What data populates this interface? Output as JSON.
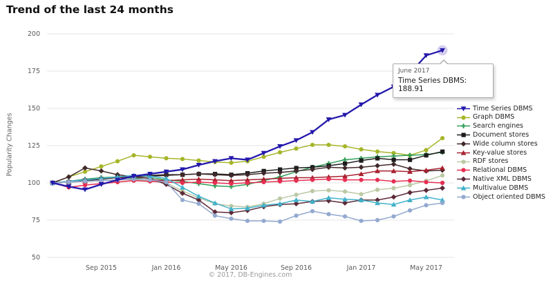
{
  "page": {
    "title": "Trend of the last 24 months",
    "footer": "© 2017, DB-Engines.com"
  },
  "tooltip": {
    "date": "June 2017",
    "text": "Time Series DBMS: 188.91"
  },
  "chart_data": {
    "type": "line",
    "title": "Trend of the last 24 months",
    "xlabel": "",
    "ylabel": "Popularity Changes",
    "ylim": [
      50,
      200
    ],
    "y_ticks": [
      200,
      175,
      150,
      125,
      100,
      75,
      50
    ],
    "grid": true,
    "legend_position": "right",
    "x": [
      "Jun 2015",
      "Jul 2015",
      "Aug 2015",
      "Sep 2015",
      "Oct 2015",
      "Nov 2015",
      "Dec 2015",
      "Jan 2016",
      "Feb 2016",
      "Mar 2016",
      "Apr 2016",
      "May 2016",
      "Jun 2016",
      "Jul 2016",
      "Aug 2016",
      "Sep 2016",
      "Oct 2016",
      "Nov 2016",
      "Dec 2016",
      "Jan 2017",
      "Feb 2017",
      "Mar 2017",
      "Apr 2017",
      "May 2017",
      "Jun 2017"
    ],
    "x_tick_indices": [
      3,
      7,
      11,
      15,
      19,
      23
    ],
    "x_tick_labels": [
      "Sep 2015",
      "Jan 2016",
      "May 2016",
      "Sep 2016",
      "Jan 2017",
      "May 2017"
    ],
    "highlight": {
      "series": "Time Series DBMS",
      "x": "Jun 2017",
      "value": 188.91,
      "halo_color": "#b7a7e6"
    },
    "series": [
      {
        "name": "Time Series DBMS",
        "color": "#2318ab",
        "marker": "triangle-down",
        "values": [
          100,
          97.5,
          95.5,
          99,
          102,
          104.5,
          106,
          107.5,
          109,
          112,
          114.5,
          116.5,
          115.5,
          120,
          124.5,
          128.5,
          134,
          142.5,
          145.5,
          152.5,
          159,
          164.5,
          173.5,
          185.5,
          188.91
        ]
      },
      {
        "name": "Graph DBMS",
        "color": "#a6b528",
        "marker": "circle",
        "values": [
          100,
          104,
          107.5,
          111,
          114.5,
          118.5,
          117.5,
          116.5,
          116,
          115,
          114,
          113.5,
          114.5,
          117.5,
          120.5,
          123,
          125.5,
          125.5,
          124.5,
          122.5,
          121,
          120,
          118.5,
          122,
          130
        ]
      },
      {
        "name": "Search engines",
        "color": "#2f9e57",
        "marker": "cross",
        "values": [
          100,
          101,
          102.5,
          103.5,
          104,
          103,
          103.5,
          102,
          101,
          99.5,
          98,
          97.5,
          99,
          101.5,
          104,
          107.5,
          110.5,
          113,
          115.5,
          116.5,
          117.5,
          118,
          118.5,
          119,
          120.5
        ]
      },
      {
        "name": "Document stores",
        "color": "#1c1c1c",
        "marker": "square",
        "values": [
          100,
          100.5,
          101.5,
          102.5,
          103.5,
          104.5,
          105,
          105.5,
          105.5,
          106,
          106,
          105.5,
          106.5,
          108,
          109,
          110,
          110.5,
          111.5,
          113,
          115,
          116.5,
          115.5,
          115.5,
          118.5,
          121
        ]
      },
      {
        "name": "Wide column stores",
        "color": "#40282a",
        "marker": "diamond",
        "values": [
          100,
          104,
          110,
          108,
          105.5,
          104,
          104.5,
          105,
          105.5,
          106,
          105.5,
          105,
          105.5,
          106.5,
          107,
          108,
          109,
          110.5,
          110,
          110.5,
          111.5,
          112.5,
          109.5,
          108,
          108.5
        ]
      },
      {
        "name": "Key-value stores",
        "color": "#a8212f",
        "marker": "triangle-up",
        "values": [
          100,
          100.5,
          101,
          101.5,
          102,
          102.5,
          102,
          101.5,
          102,
          102.5,
          102,
          101.5,
          102,
          102.5,
          103,
          103.5,
          103.5,
          104,
          104.5,
          106,
          108,
          108,
          107.5,
          108.5,
          110
        ]
      },
      {
        "name": "RDF stores",
        "color": "#bcc9a5",
        "marker": "circle",
        "values": [
          100,
          100.5,
          101,
          101.5,
          102,
          102,
          101.5,
          100,
          94.5,
          90,
          86,
          84.5,
          83.8,
          86,
          89.5,
          92,
          94.5,
          95,
          94.2,
          92.4,
          95.4,
          96.4,
          98.5,
          101.4,
          105
        ]
      },
      {
        "name": "Relational DBMS",
        "color": "#e62e52",
        "marker": "circle",
        "values": [
          100,
          97,
          98.5,
          99.5,
          100.5,
          101.5,
          101,
          100.5,
          100,
          100.5,
          100,
          99.5,
          100,
          100.5,
          101,
          101.5,
          102,
          102.5,
          102,
          102,
          102,
          101,
          101.5,
          100.5,
          100
        ]
      },
      {
        "name": "Native XML DBMS",
        "color": "#5c2a38",
        "marker": "diamond",
        "values": [
          100,
          101,
          102,
          103,
          103.5,
          104,
          103,
          99,
          93,
          88.5,
          80.5,
          80,
          81.5,
          84,
          85.5,
          86,
          87.5,
          88,
          86.5,
          88.5,
          88.5,
          90.5,
          93.5,
          95,
          96.5
        ]
      },
      {
        "name": "Multivalue DBMS",
        "color": "#41b1ca",
        "marker": "triangle-up",
        "values": [
          100,
          101,
          102,
          103,
          104,
          105,
          104.5,
          103,
          97,
          91,
          86.5,
          82.5,
          83,
          85,
          86,
          88.5,
          87.5,
          90,
          89,
          88.5,
          86.5,
          85.5,
          88.5,
          90.5,
          88.5
        ]
      },
      {
        "name": "Object oriented DBMS",
        "color": "#93a9cf",
        "marker": "circle",
        "values": [
          100,
          100.5,
          101,
          101.5,
          102,
          102.5,
          102,
          100.5,
          88.5,
          86,
          78,
          76,
          74.5,
          74.5,
          74,
          78,
          81,
          79,
          77.5,
          74.5,
          75,
          77.5,
          81.5,
          85,
          86.5
        ]
      }
    ]
  }
}
